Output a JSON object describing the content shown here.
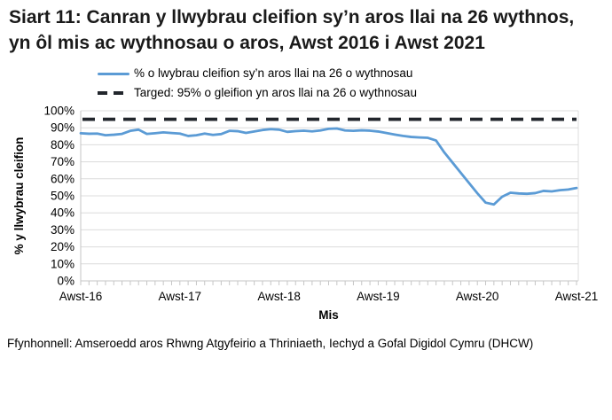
{
  "title": "Siart 11: Canran y llwybrau cleifion sy’n aros llai na 26 wythnos, yn ôl mis ac wythnosau o aros, Awst 2016 i Awst 2021",
  "legend": {
    "items": [
      {
        "label": "% o lwybrau cleifion sy’n aros llai na 26 o wythnosau",
        "style": "solid",
        "color": "#5b9bd5"
      },
      {
        "label": "Targed: 95% o gleifion yn aros llai na 26 o wythnosau",
        "style": "dashed",
        "color": "#22262c"
      }
    ]
  },
  "source": "Ffynhonnell: Amseroedd aros Rhwng Atgyfeirio a Thriniaeth, Iechyd a Gofal Digidol Cymru (DHCW)",
  "chart_data": {
    "type": "line",
    "xlabel": "Mis",
    "ylabel": "% y llwybrau cleifion",
    "ylim": [
      0,
      100
    ],
    "y_tick_labels": [
      "0%",
      "10%",
      "20%",
      "30%",
      "40%",
      "50%",
      "60%",
      "70%",
      "80%",
      "90%",
      "100%"
    ],
    "x_tick_labels": [
      "Awst-16",
      "Awst-17",
      "Awst-18",
      "Awst-19",
      "Awst-20",
      "Awst-21"
    ],
    "x_interval": "monthly",
    "x_range": "Awst 2016 i Awst 2021",
    "grid": "horizontal",
    "legend_position": "top",
    "target": {
      "name": "Targed: 95% o gleifion yn aros llai na 26 o wythnosau",
      "value": 95,
      "color": "#22262c",
      "dashed": true
    },
    "series": [
      {
        "name": "% o lwybrau cleifion sy’n aros llai na 26 o wythnosau",
        "color": "#5b9bd5",
        "values": [
          86.8,
          86.5,
          86.6,
          85.6,
          85.9,
          86.4,
          88.2,
          88.9,
          86.4,
          86.8,
          87.3,
          86.9,
          86.6,
          85.2,
          85.6,
          86.6,
          85.8,
          86.3,
          88.2,
          88.0,
          87.0,
          87.8,
          88.7,
          89.2,
          88.9,
          87.6,
          88.0,
          88.3,
          87.9,
          88.4,
          89.4,
          89.6,
          88.4,
          88.2,
          88.5,
          88.3,
          87.8,
          86.9,
          86.0,
          85.2,
          84.6,
          84.3,
          84.1,
          82.5,
          75.5,
          69.5,
          63.5,
          57.5,
          51.5,
          46.0,
          44.9,
          49.5,
          51.8,
          51.4,
          51.2,
          51.6,
          52.9,
          52.6,
          53.3,
          53.7,
          54.6
        ]
      }
    ],
    "colors": {
      "gridline": "#dcdcdc",
      "axis": "#c6c6c6",
      "text": "#000000"
    }
  }
}
